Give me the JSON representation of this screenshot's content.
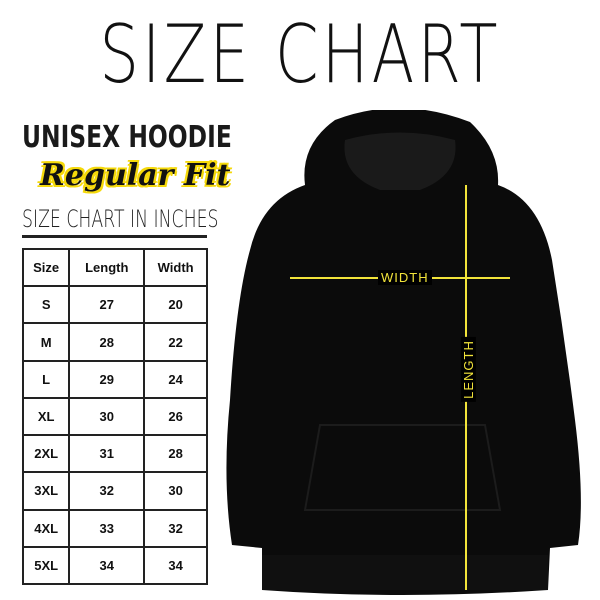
{
  "title": "SIZE CHART",
  "product": "UNISEX HOODIE",
  "fit": "Regular Fit",
  "chart_heading": "SIZE CHART IN INCHES",
  "table": {
    "headers": [
      "Size",
      "Length",
      "Width"
    ],
    "rows": [
      [
        "S",
        "27",
        "20"
      ],
      [
        "M",
        "28",
        "22"
      ],
      [
        "L",
        "29",
        "24"
      ],
      [
        "XL",
        "30",
        "26"
      ],
      [
        "2XL",
        "31",
        "28"
      ],
      [
        "3XL",
        "32",
        "30"
      ],
      [
        "4XL",
        "33",
        "32"
      ],
      [
        "5XL",
        "34",
        "34"
      ]
    ]
  },
  "diagram": {
    "width_label": "WIDTH",
    "length_label": "LENGTH",
    "line_color": "#f2e43a",
    "garment_color": "#0b0b0b"
  }
}
